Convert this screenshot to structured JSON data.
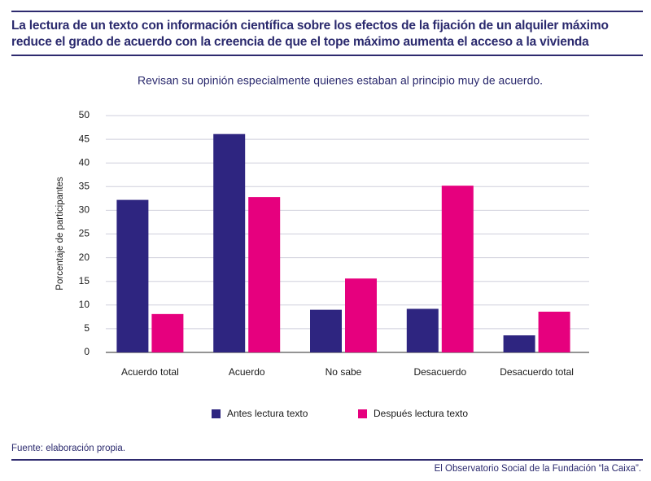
{
  "chart_data": {
    "type": "bar",
    "title": "La lectura de un texto con información científica sobre los efectos de la fijación de un alquiler máximo reduce el grado de acuerdo con la creencia de que el tope máximo aumenta el acceso a la vivienda",
    "subtitle": "Revisan su opinión especialmente quienes estaban al principio muy de acuerdo.",
    "y_label": "Porcentaje de participantes",
    "categories": [
      "Acuerdo total",
      "Acuerdo",
      "No sabe",
      "Desacuerdo",
      "Desacuerdo total"
    ],
    "series": [
      {
        "name": "Antes lectura texto",
        "color": "#2e2580",
        "values": [
          32.2,
          46.1,
          9.0,
          9.2,
          3.6
        ]
      },
      {
        "name": "Después lectura texto",
        "color": "#e6007e",
        "values": [
          8.1,
          32.8,
          15.6,
          35.2,
          8.6
        ]
      }
    ],
    "ylim": [
      0,
      50
    ],
    "yticks": [
      0,
      5,
      10,
      15,
      20,
      25,
      30,
      35,
      40,
      45,
      50
    ],
    "grid": true,
    "legend": "bottom"
  },
  "footer": {
    "source": "Fuente: elaboración propia.",
    "credit": "El Observatorio Social de la Fundación “la Caixa”."
  }
}
